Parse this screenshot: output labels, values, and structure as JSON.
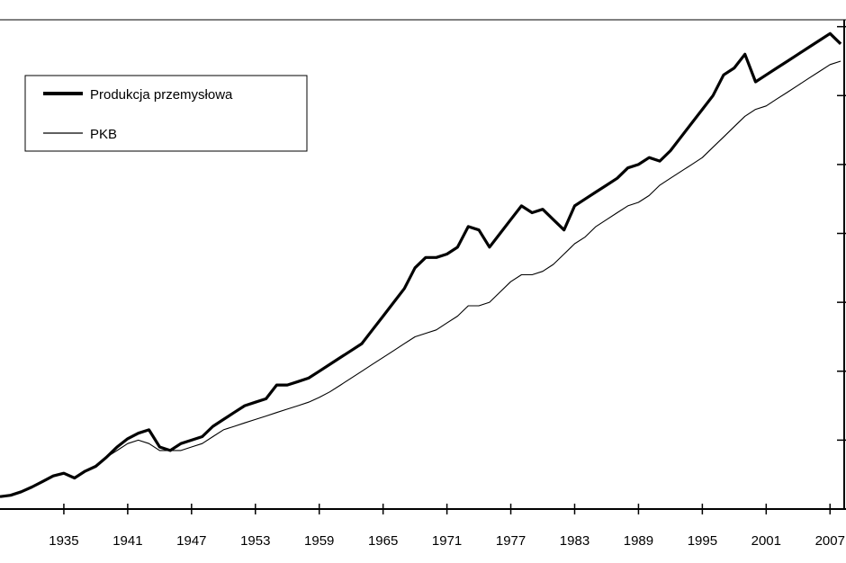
{
  "chart_data": {
    "type": "line",
    "xlim": [
      1929,
      2008.5
    ],
    "ylim": [
      0,
      7.1
    ],
    "y_scale": "log",
    "grid": false,
    "legend_position": "top-left",
    "x_ticks": [
      1935,
      1941,
      1947,
      1953,
      1959,
      1965,
      1971,
      1977,
      1983,
      1989,
      1995,
      2001,
      2007
    ],
    "x_tick_labels": [
      "1935",
      "1941",
      "1947",
      "1953",
      "1959",
      "1965",
      "1971",
      "1977",
      "1983",
      "1989",
      "1995",
      "2001",
      "2007"
    ],
    "y_ticks": [
      1,
      2,
      3,
      4,
      5,
      6,
      7
    ],
    "series": [
      {
        "name": "Produkcja przemysłowa",
        "color": "#000000",
        "x": [
          1929,
          1930,
          1931,
          1932,
          1933,
          1934,
          1935,
          1936,
          1937,
          1938,
          1939,
          1940,
          1941,
          1942,
          1943,
          1944,
          1945,
          1946,
          1947,
          1948,
          1949,
          1950,
          1951,
          1952,
          1953,
          1954,
          1955,
          1956,
          1957,
          1958,
          1959,
          1960,
          1961,
          1962,
          1963,
          1964,
          1965,
          1966,
          1967,
          1968,
          1969,
          1970,
          1971,
          1972,
          1973,
          1974,
          1975,
          1976,
          1977,
          1978,
          1979,
          1980,
          1981,
          1982,
          1983,
          1984,
          1985,
          1986,
          1987,
          1988,
          1989,
          1990,
          1991,
          1992,
          1993,
          1994,
          1995,
          1996,
          1997,
          1998,
          1999,
          2000,
          2001,
          2002,
          2003,
          2004,
          2005,
          2006,
          2007,
          2008
        ],
        "values": [
          0.18,
          0.2,
          0.25,
          0.32,
          0.4,
          0.48,
          0.52,
          0.45,
          0.55,
          0.62,
          0.75,
          0.9,
          1.02,
          1.1,
          1.15,
          0.9,
          0.85,
          0.95,
          1.0,
          1.05,
          1.2,
          1.3,
          1.4,
          1.5,
          1.55,
          1.6,
          1.8,
          1.8,
          1.85,
          1.9,
          2.0,
          2.1,
          2.2,
          2.3,
          2.4,
          2.6,
          2.8,
          3.0,
          3.2,
          3.5,
          3.65,
          3.65,
          3.7,
          3.8,
          4.1,
          4.05,
          3.8,
          4.0,
          4.2,
          4.4,
          4.3,
          4.35,
          4.2,
          4.05,
          4.4,
          4.5,
          4.6,
          4.7,
          4.8,
          4.95,
          5.0,
          5.1,
          5.05,
          5.2,
          5.4,
          5.6,
          5.8,
          6.0,
          6.3,
          6.4,
          6.6,
          6.2,
          6.3,
          6.4,
          6.5,
          6.6,
          6.7,
          6.8,
          6.9,
          6.75
        ]
      },
      {
        "name": "PKB",
        "color": "#000000",
        "x": [
          1929,
          1930,
          1931,
          1932,
          1933,
          1934,
          1935,
          1936,
          1937,
          1938,
          1939,
          1940,
          1941,
          1942,
          1943,
          1944,
          1945,
          1946,
          1947,
          1948,
          1949,
          1950,
          1951,
          1952,
          1953,
          1954,
          1955,
          1956,
          1957,
          1958,
          1959,
          1960,
          1961,
          1962,
          1963,
          1964,
          1965,
          1966,
          1967,
          1968,
          1969,
          1970,
          1971,
          1972,
          1973,
          1974,
          1975,
          1976,
          1977,
          1978,
          1979,
          1980,
          1981,
          1982,
          1983,
          1984,
          1985,
          1986,
          1987,
          1988,
          1989,
          1990,
          1991,
          1992,
          1993,
          1994,
          1995,
          1996,
          1997,
          1998,
          1999,
          2000,
          2001,
          2002,
          2003,
          2004,
          2005,
          2006,
          2007,
          2008
        ],
        "values": [
          0.18,
          0.2,
          0.25,
          0.32,
          0.4,
          0.48,
          0.52,
          0.45,
          0.55,
          0.62,
          0.75,
          0.85,
          0.95,
          1.0,
          0.95,
          0.85,
          0.85,
          0.85,
          0.9,
          0.95,
          1.05,
          1.15,
          1.2,
          1.25,
          1.3,
          1.35,
          1.4,
          1.45,
          1.5,
          1.55,
          1.62,
          1.7,
          1.8,
          1.9,
          2.0,
          2.1,
          2.2,
          2.3,
          2.4,
          2.5,
          2.55,
          2.6,
          2.7,
          2.8,
          2.95,
          2.95,
          3.0,
          3.15,
          3.3,
          3.4,
          3.4,
          3.45,
          3.55,
          3.7,
          3.85,
          3.95,
          4.1,
          4.2,
          4.3,
          4.4,
          4.45,
          4.55,
          4.7,
          4.8,
          4.9,
          5.0,
          5.1,
          5.25,
          5.4,
          5.55,
          5.7,
          5.8,
          5.85,
          5.95,
          6.05,
          6.15,
          6.25,
          6.35,
          6.45,
          6.5
        ]
      }
    ]
  }
}
